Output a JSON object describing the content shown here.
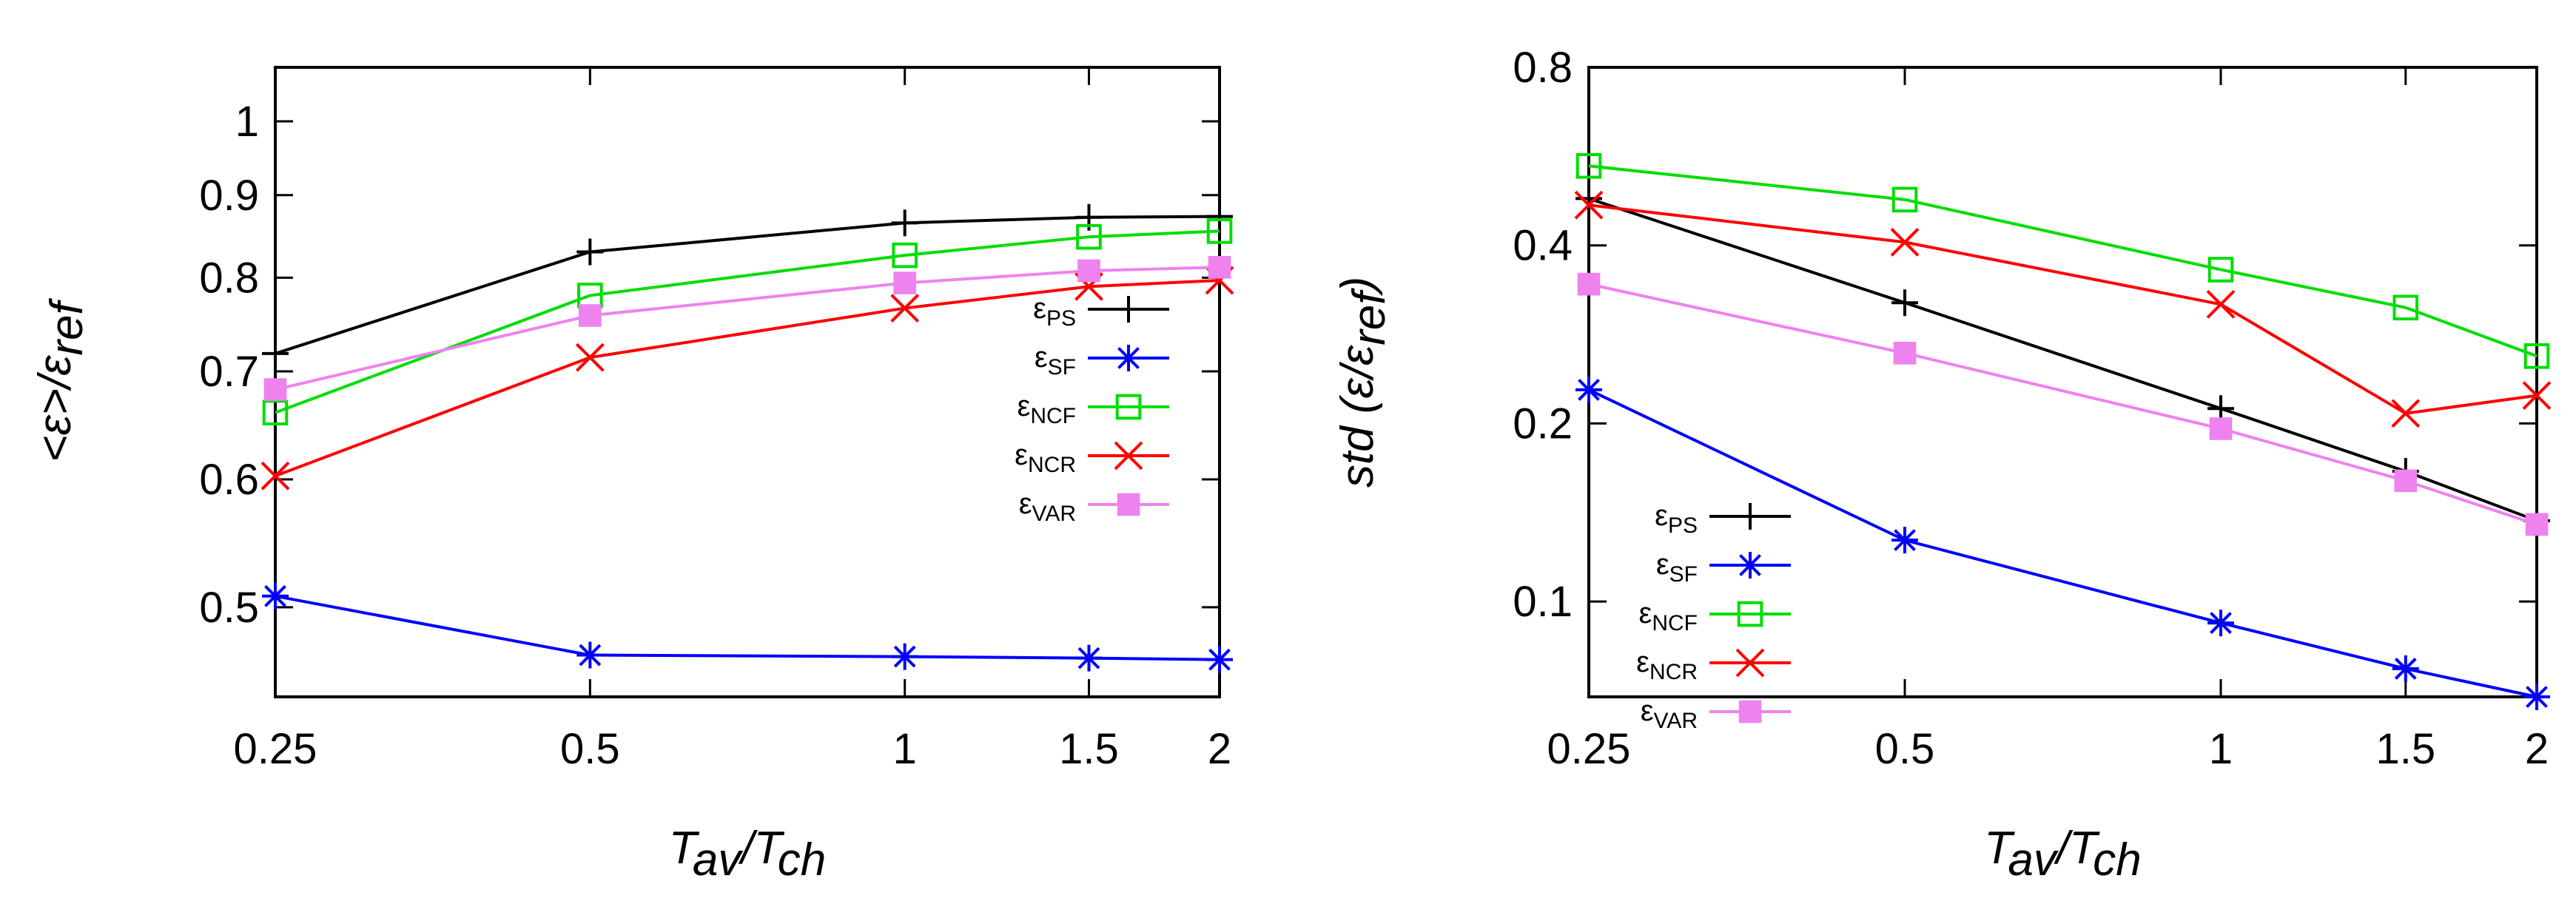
{
  "chart_data": [
    {
      "type": "line",
      "xscale": "log",
      "yscale": "log",
      "x_ticks": [
        0.25,
        0.5,
        1,
        1.5,
        2
      ],
      "x_tick_labels": [
        "0.25",
        "0.5",
        "1",
        "1.5",
        "2"
      ],
      "y_ticks": [
        0.5,
        0.6,
        0.7,
        0.8,
        0.9,
        1
      ],
      "y_tick_labels": [
        "0.5",
        "0.6",
        "0.7",
        "0.8",
        "0.9",
        "1"
      ],
      "xlim": [
        0.25,
        2
      ],
      "ylim": [
        0.44,
        1.08
      ],
      "xlabel": "T_av/T_ch",
      "ylabel": "<ε>/ε_ref",
      "legend_position": "right",
      "grid": false,
      "x": [
        0.25,
        0.5,
        1,
        1.5,
        2
      ],
      "series": [
        {
          "name": "ε_PS",
          "color": "#000000",
          "marker": "plus",
          "values": [
            0.718,
            0.83,
            0.865,
            0.872,
            0.873
          ]
        },
        {
          "name": "ε_SF",
          "color": "#0000ff",
          "marker": "asterisk",
          "values": [
            0.508,
            0.467,
            0.466,
            0.465,
            0.464
          ]
        },
        {
          "name": "ε_NCF",
          "color": "#00dd00",
          "marker": "open-square",
          "values": [
            0.66,
            0.78,
            0.826,
            0.848,
            0.855
          ]
        },
        {
          "name": "ε_NCR",
          "color": "#ff0000",
          "marker": "cross",
          "values": [
            0.603,
            0.714,
            0.766,
            0.79,
            0.797
          ]
        },
        {
          "name": "ε_VAR",
          "color": "#ee82ee",
          "marker": "filled-square",
          "values": [
            0.682,
            0.758,
            0.794,
            0.808,
            0.812
          ]
        }
      ]
    },
    {
      "type": "line",
      "xscale": "log",
      "yscale": "log",
      "x_ticks": [
        0.25,
        0.5,
        1,
        1.5,
        2
      ],
      "x_tick_labels": [
        "0.25",
        "0.5",
        "1",
        "1.5",
        "2"
      ],
      "y_ticks": [
        0.1,
        0.2,
        0.4,
        0.8
      ],
      "y_tick_labels": [
        "0.1",
        "0.2",
        "0.4",
        "0.8"
      ],
      "xlim": [
        0.25,
        2
      ],
      "ylim": [
        0.069,
        0.8
      ],
      "xlabel": "T_av/T_ch",
      "ylabel": "std (ε/ε_ref)",
      "legend_position": "bottom-left",
      "grid": false,
      "x": [
        0.25,
        0.5,
        1,
        1.5,
        2
      ],
      "series": [
        {
          "name": "ε_PS",
          "color": "#000000",
          "marker": "plus",
          "values": [
            0.48,
            0.32,
            0.212,
            0.166,
            0.137
          ]
        },
        {
          "name": "ε_SF",
          "color": "#0000ff",
          "marker": "asterisk",
          "values": [
            0.228,
            0.127,
            0.092,
            0.077,
            0.069
          ]
        },
        {
          "name": "ε_NCF",
          "color": "#00dd00",
          "marker": "open-square",
          "values": [
            0.545,
            0.478,
            0.364,
            0.314,
            0.26
          ]
        },
        {
          "name": "ε_NCR",
          "color": "#ff0000",
          "marker": "cross",
          "values": [
            0.468,
            0.405,
            0.318,
            0.208,
            0.223
          ]
        },
        {
          "name": "ε_VAR",
          "color": "#ee82ee",
          "marker": "filled-square",
          "values": [
            0.344,
            0.263,
            0.196,
            0.16,
            0.135
          ]
        }
      ]
    }
  ]
}
